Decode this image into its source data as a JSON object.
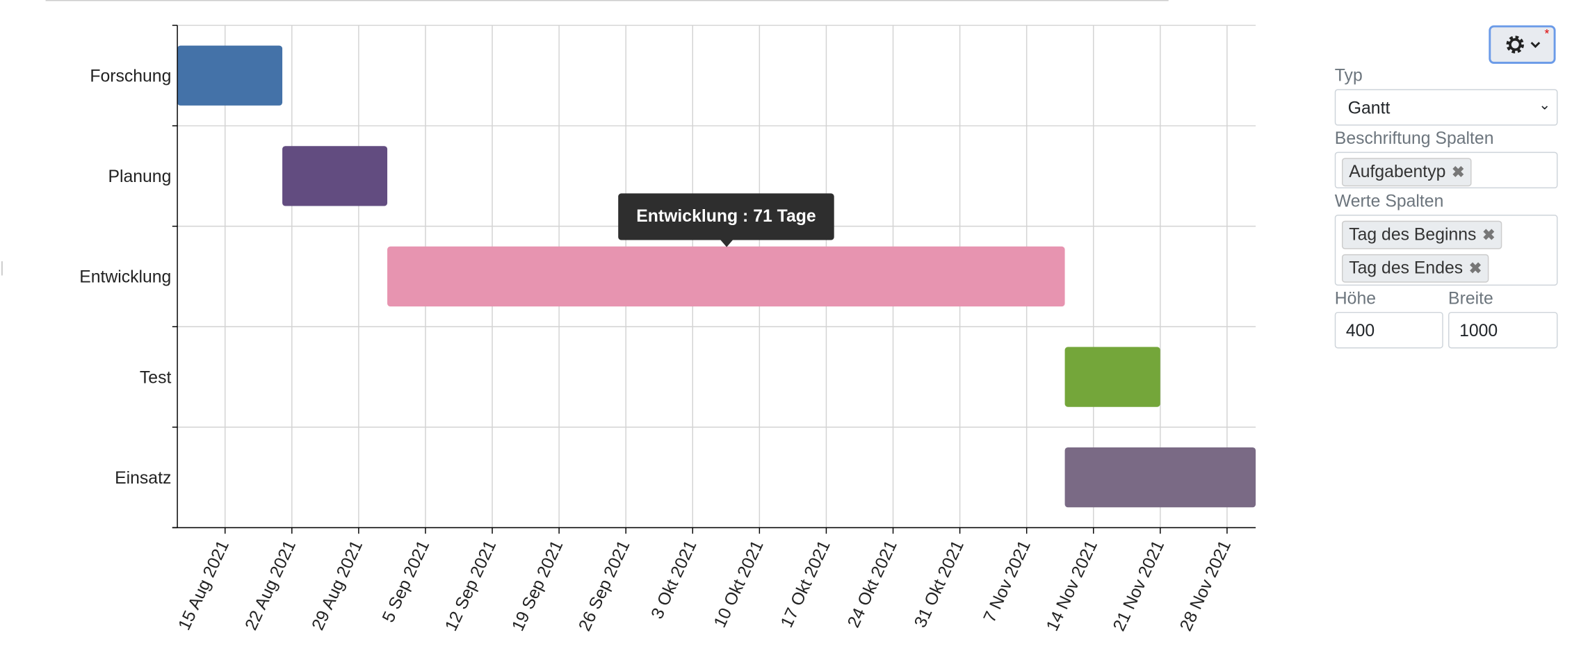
{
  "chart_data": {
    "type": "gantt",
    "categories": [
      "Forschung",
      "Planung",
      "Entwicklung",
      "Test",
      "Einsatz"
    ],
    "start": [
      "2021-08-10",
      "2021-08-21",
      "2021-09-01",
      "2021-11-11",
      "2021-11-11"
    ],
    "end": [
      "2021-08-21",
      "2021-09-01",
      "2021-11-11",
      "2021-11-21",
      "2021-12-01"
    ],
    "colors": [
      "#4472a8",
      "#624c80",
      "#e794b0",
      "#74a63a",
      "#7a6a85"
    ],
    "xlim": [
      "2021-08-10",
      "2021-12-01"
    ],
    "xticks": [
      {
        "value": "2021-08-15",
        "label": "15 Aug 2021"
      },
      {
        "value": "2021-08-22",
        "label": "22 Aug 2021"
      },
      {
        "value": "2021-08-29",
        "label": "29 Aug 2021"
      },
      {
        "value": "2021-09-05",
        "label": "5 Sep 2021"
      },
      {
        "value": "2021-09-12",
        "label": "12 Sep 2021"
      },
      {
        "value": "2021-09-19",
        "label": "19 Sep 2021"
      },
      {
        "value": "2021-09-26",
        "label": "26 Sep 2021"
      },
      {
        "value": "2021-10-03",
        "label": "3 Okt 2021"
      },
      {
        "value": "2021-10-10",
        "label": "10 Okt 2021"
      },
      {
        "value": "2021-10-17",
        "label": "17 Okt 2021"
      },
      {
        "value": "2021-10-24",
        "label": "24 Okt 2021"
      },
      {
        "value": "2021-10-31",
        "label": "31 Okt 2021"
      },
      {
        "value": "2021-11-07",
        "label": "7 Nov 2021"
      },
      {
        "value": "2021-11-14",
        "label": "14 Nov 2021"
      },
      {
        "value": "2021-11-21",
        "label": "21 Nov 2021"
      },
      {
        "value": "2021-11-28",
        "label": "28 Nov 2021"
      }
    ],
    "grid": true,
    "tooltip": "Entwicklung : 71 Tage"
  },
  "panel": {
    "type_label": "Typ",
    "type_value": "Gantt",
    "label_columns_label": "Beschriftung Spalten",
    "label_columns": [
      "Aufgabentyp"
    ],
    "value_columns_label": "Werte Spalten",
    "value_columns": [
      "Tag des Beginns",
      "Tag des Endes"
    ],
    "height_label": "Höhe",
    "height_value": 400,
    "width_label": "Breite",
    "width_value": 1000
  }
}
